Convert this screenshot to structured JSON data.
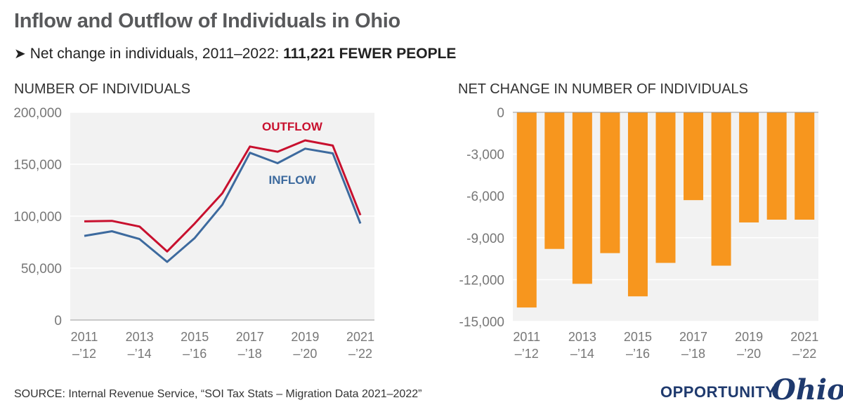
{
  "header": {
    "title": "Inflow and Outflow of Individuals in Ohio",
    "subtitle_prefix": "Net change in individuals, 2011–2022: ",
    "subtitle_bold": "111,221 FEWER PEOPLE",
    "arrow_icon": "right-arrow-icon"
  },
  "footer": {
    "source": "SOURCE: Internal Revenue Service, “SOI Tax Stats – Migration Data 2021–2022”",
    "logo_word": "OPPORTUNITY",
    "logo_script": "Ohio"
  },
  "colors": {
    "outflow": "#c8102e",
    "inflow": "#3d6a9e",
    "bars": "#f7961e",
    "plot_bg": "#f2f2f2",
    "grid": "#ffffff",
    "tick_text": "#777777"
  },
  "chart_data": [
    {
      "type": "line",
      "title": "NUMBER OF INDIVIDUALS",
      "xlabels": [
        [
          "2011",
          "–’12"
        ],
        [
          "2013",
          "–’14"
        ],
        [
          "2015",
          "–’16"
        ],
        [
          "2017",
          "–’18"
        ],
        [
          "2019",
          "–’20"
        ],
        [
          "2021",
          "–’22"
        ]
      ],
      "x": [
        "2011–’12",
        "2012–’13",
        "2013–’14",
        "2014–’15",
        "2015–’16",
        "2016–’17",
        "2017–’18",
        "2018–’19",
        "2019–’20",
        "2020–’21",
        "2021–’22"
      ],
      "series": [
        {
          "name": "OUTFLOW",
          "values": [
            95000,
            95500,
            90000,
            66000,
            93000,
            122000,
            167000,
            162000,
            173000,
            168000,
            101000
          ]
        },
        {
          "name": "INFLOW",
          "values": [
            81000,
            85500,
            78000,
            56000,
            79000,
            111000,
            161000,
            151000,
            165000,
            160500,
            93000
          ]
        }
      ],
      "ylim": [
        0,
        200000
      ],
      "yticks": [
        0,
        50000,
        100000,
        150000,
        200000
      ],
      "ytick_labels": [
        "0",
        "50,000",
        "100,000",
        "150,000",
        "200,000"
      ],
      "grid": true
    },
    {
      "type": "bar",
      "title": "NET CHANGE IN NUMBER OF INDIVIDUALS",
      "xlabels": [
        [
          "2011",
          "–’12"
        ],
        [
          "2013",
          "–’14"
        ],
        [
          "2015",
          "–’16"
        ],
        [
          "2017",
          "–’18"
        ],
        [
          "2019",
          "–’20"
        ],
        [
          "2021",
          "–’22"
        ]
      ],
      "categories": [
        "2011–’12",
        "2012–’13",
        "2013–’14",
        "2014–’15",
        "2015–’16",
        "2016–’17",
        "2017–’18",
        "2018–’19",
        "2019–’20",
        "2020–’21",
        "2021–’22"
      ],
      "values": [
        -14000,
        -9800,
        -12300,
        -10100,
        -13200,
        -10800,
        -6300,
        -11000,
        -7900,
        -7700,
        -7700
      ],
      "ylim": [
        -15000,
        0
      ],
      "yticks": [
        0,
        -3000,
        -6000,
        -9000,
        -12000,
        -15000
      ],
      "ytick_labels": [
        "0",
        "-3,000",
        "-6,000",
        "-9,000",
        "-12,000",
        "-15,000"
      ],
      "grid": true
    }
  ]
}
